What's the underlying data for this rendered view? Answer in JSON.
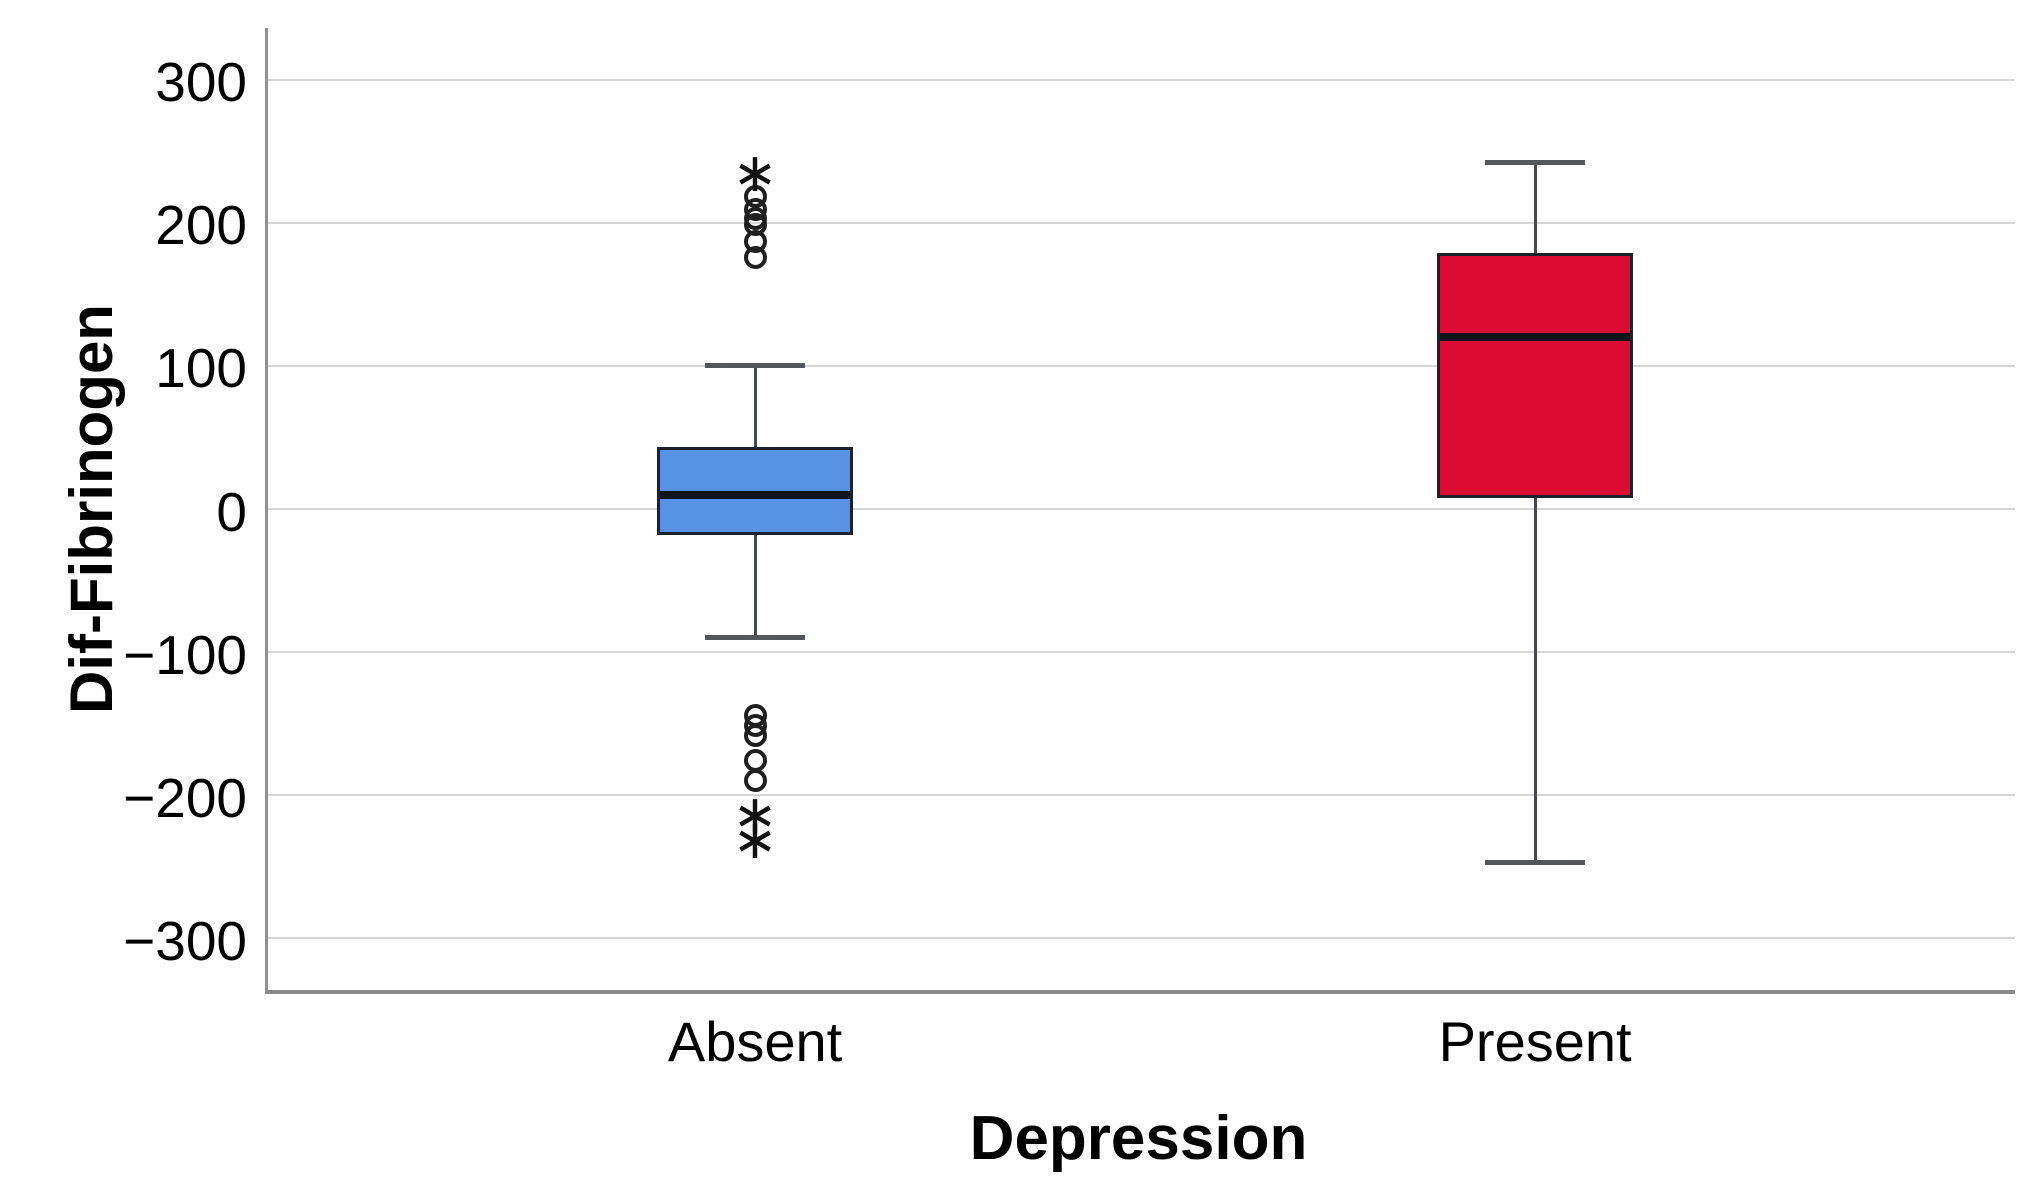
{
  "figure": {
    "background": "#ffffff",
    "y_axis_title": "Dif-Fibrinogen",
    "x_axis_title": "Depression"
  },
  "chart_data": {
    "type": "boxplot",
    "title": "",
    "xlabel": "Depression",
    "ylabel": "Dif-Fibrinogen",
    "grid": true,
    "legend": "none",
    "ylim": [
      -336,
      336
    ],
    "y_ticks": [
      {
        "value": 300,
        "label": "300"
      },
      {
        "value": 200,
        "label": "200"
      },
      {
        "value": 100,
        "label": "100"
      },
      {
        "value": 0,
        "label": "0"
      },
      {
        "value": -100,
        "label": "−100"
      },
      {
        "value": -200,
        "label": "−200"
      },
      {
        "value": -300,
        "label": "−300"
      }
    ],
    "categories": [
      "Absent",
      "Present"
    ],
    "series": [
      {
        "name": "Absent",
        "fill_color": "#5792E5",
        "whisker_low": -90,
        "q1": -18,
        "median": 10,
        "q3": 43,
        "whisker_high": 100,
        "outliers_circle": [
          218,
          209,
          203,
          199,
          187,
          176,
          -144,
          -151,
          -158,
          -176,
          -190
        ],
        "outliers_extreme": [
          235,
          -214,
          -231
        ]
      },
      {
        "name": "Present",
        "fill_color": "#DB0A33",
        "whisker_low": -247,
        "q1": 8,
        "median": 120,
        "q3": 179,
        "whisker_high": 242,
        "outliers_circle": [],
        "outliers_extreme": []
      }
    ],
    "colors": {
      "gridline": "#d6d6d6",
      "axis_line": "#8f9092",
      "box_border": "#1b222b",
      "median": "#0e141b",
      "whisker": "#45484c",
      "text": "#000000"
    }
  }
}
